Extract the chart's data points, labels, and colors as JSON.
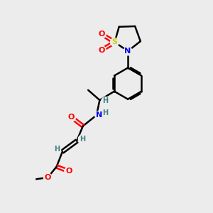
{
  "bg_color": "#ececec",
  "atom_colors": {
    "C": "#000000",
    "N": "#0000ee",
    "O": "#ff0000",
    "S": "#cccc00",
    "H": "#408080"
  },
  "bond_color": "#000000",
  "bond_width": 1.8,
  "figsize": [
    3.0,
    3.0
  ],
  "dpi": 100
}
